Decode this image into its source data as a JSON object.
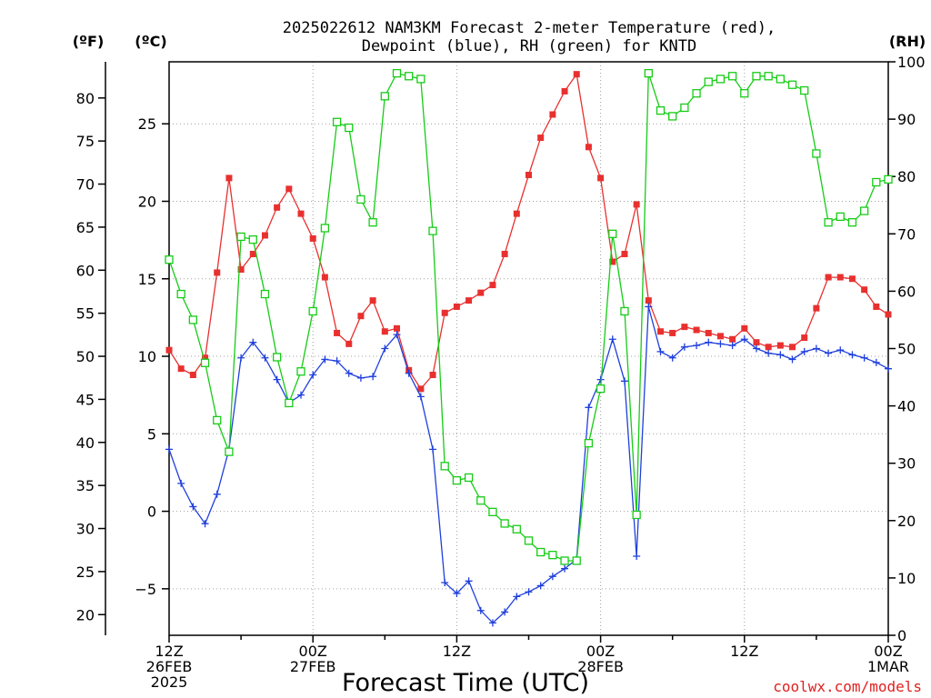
{
  "header": {
    "title_line1": "2025022612 NAM3KM Forecast 2-meter Temperature (red),",
    "title_line2": "Dewpoint (blue), RH (green) for KNTD"
  },
  "units": {
    "fahrenheit": "(ºF)",
    "celsius": "(ºC)",
    "rh": "(RH)"
  },
  "axes": {
    "x_label": "Forecast Time (UTC)",
    "x_ticks": [
      {
        "hour": 0,
        "lines": [
          "12Z",
          "26FEB",
          "2025"
        ]
      },
      {
        "hour": 12,
        "lines": [
          "00Z",
          "27FEB"
        ]
      },
      {
        "hour": 24,
        "lines": [
          "12Z"
        ]
      },
      {
        "hour": 36,
        "lines": [
          "00Z",
          "28FEB"
        ]
      },
      {
        "hour": 48,
        "lines": [
          "12Z"
        ]
      },
      {
        "hour": 60,
        "lines": [
          "00Z",
          "1MAR"
        ]
      }
    ],
    "celsius_ticks": [
      -5,
      0,
      5,
      10,
      15,
      20,
      25
    ],
    "celsius_range": [
      -8,
      29
    ],
    "fahrenheit_ticks": [
      20,
      25,
      30,
      35,
      40,
      45,
      50,
      55,
      60,
      65,
      70,
      75,
      80
    ],
    "rh_ticks": [
      0,
      10,
      20,
      30,
      40,
      50,
      60,
      70,
      80,
      90,
      100
    ],
    "rh_range": [
      0,
      100
    ],
    "grid": true
  },
  "credit": "coolwx.com/models",
  "colors": {
    "temperature": "#e8302f",
    "dewpoint": "#1f3fdc",
    "rh": "#16cc16",
    "grid": "#a0a0a0",
    "credit": "#e02020"
  },
  "chart_data": {
    "type": "line",
    "x_unit": "forecast hour from 2025-02-26 12Z",
    "series": [
      {
        "name": "Temperature",
        "unit": "°C",
        "axis": "celsius",
        "marker": "square-filled",
        "x": [
          0,
          1,
          2,
          3,
          4,
          5,
          6,
          7,
          8,
          9,
          10,
          11,
          12,
          13,
          14,
          15,
          16,
          17,
          18,
          19,
          20,
          21,
          22,
          23,
          24,
          25,
          26,
          27,
          28,
          29,
          30,
          31,
          32,
          33,
          34,
          35,
          36,
          37,
          38,
          39,
          40,
          41,
          42,
          43,
          44,
          45,
          46,
          47,
          48,
          49,
          50,
          51,
          52,
          53,
          54,
          55,
          56,
          57,
          58,
          59,
          60
        ],
        "values": [
          10.4,
          9.2,
          8.8,
          9.9,
          15.4,
          21.5,
          15.6,
          16.6,
          17.8,
          19.6,
          20.8,
          19.2,
          17.6,
          15.1,
          11.5,
          10.8,
          12.6,
          13.6,
          11.6,
          11.8,
          9.1,
          7.9,
          8.8,
          12.8,
          13.2,
          13.6,
          14.1,
          14.6,
          16.6,
          19.2,
          21.7,
          24.1,
          25.6,
          27.1,
          28.2,
          23.5,
          21.5,
          16.1,
          16.6,
          19.8,
          13.6,
          11.6,
          11.5,
          11.9,
          11.7,
          11.5,
          11.3,
          11.1,
          11.8,
          10.9,
          10.6,
          10.7,
          10.6,
          11.2,
          13.1,
          15.1,
          15.1,
          15.0,
          14.3,
          13.2,
          12.7
        ]
      },
      {
        "name": "Dewpoint",
        "unit": "°C",
        "axis": "celsius",
        "marker": "plus",
        "x": [
          0,
          1,
          2,
          3,
          4,
          5,
          6,
          7,
          8,
          9,
          10,
          11,
          12,
          13,
          14,
          15,
          16,
          17,
          18,
          19,
          20,
          21,
          22,
          23,
          24,
          25,
          26,
          27,
          28,
          29,
          30,
          31,
          32,
          33,
          34,
          35,
          36,
          37,
          38,
          39,
          40,
          41,
          42,
          43,
          44,
          45,
          46,
          47,
          48,
          49,
          50,
          51,
          52,
          53,
          54,
          55,
          56,
          57,
          58,
          59,
          60
        ],
        "values": [
          4.0,
          1.8,
          0.3,
          -0.8,
          1.1,
          4.0,
          9.9,
          10.9,
          9.9,
          8.5,
          7.0,
          7.5,
          8.8,
          9.8,
          9.7,
          8.9,
          8.6,
          8.7,
          10.5,
          11.4,
          8.9,
          7.4,
          4.0,
          -4.6,
          -5.3,
          -4.5,
          -6.4,
          -7.2,
          -6.5,
          -5.5,
          -5.2,
          -4.8,
          -4.2,
          -3.7,
          -3.1,
          6.7,
          8.5,
          11.1,
          8.4,
          -2.9,
          13.2,
          10.3,
          9.9,
          10.6,
          10.7,
          10.9,
          10.8,
          10.7,
          11.1,
          10.5,
          10.2,
          10.1,
          9.8,
          10.3,
          10.5,
          10.2,
          10.4,
          10.1,
          9.9,
          9.6,
          9.2
        ]
      },
      {
        "name": "RH",
        "unit": "%",
        "axis": "rh",
        "marker": "square-open",
        "x": [
          0,
          1,
          2,
          3,
          4,
          5,
          6,
          7,
          8,
          9,
          10,
          11,
          12,
          13,
          14,
          15,
          16,
          17,
          18,
          19,
          20,
          21,
          22,
          23,
          24,
          25,
          26,
          27,
          28,
          29,
          30,
          31,
          32,
          33,
          34,
          35,
          36,
          37,
          38,
          39,
          40,
          41,
          42,
          43,
          44,
          45,
          46,
          47,
          48,
          49,
          50,
          51,
          52,
          53,
          54,
          55,
          56,
          57,
          58,
          59,
          60
        ],
        "values": [
          65.5,
          59.5,
          55.0,
          47.5,
          37.5,
          32.0,
          69.5,
          69.0,
          59.5,
          48.5,
          40.5,
          46.0,
          56.5,
          71.0,
          89.5,
          88.5,
          76.0,
          72.0,
          94.0,
          98.0,
          97.5,
          97.0,
          70.5,
          29.5,
          27.0,
          27.5,
          23.5,
          21.5,
          19.5,
          18.5,
          16.5,
          14.5,
          14.0,
          13.0,
          13.0,
          33.5,
          43.0,
          70.0,
          56.5,
          21.0,
          98.0,
          91.5,
          90.5,
          92.0,
          94.5,
          96.5,
          97.0,
          97.5,
          94.5,
          97.5,
          97.5,
          97.0,
          96.0,
          95.0,
          84.0,
          72.0,
          73.0,
          72.0,
          74.0,
          79.0,
          79.5
        ]
      }
    ]
  }
}
